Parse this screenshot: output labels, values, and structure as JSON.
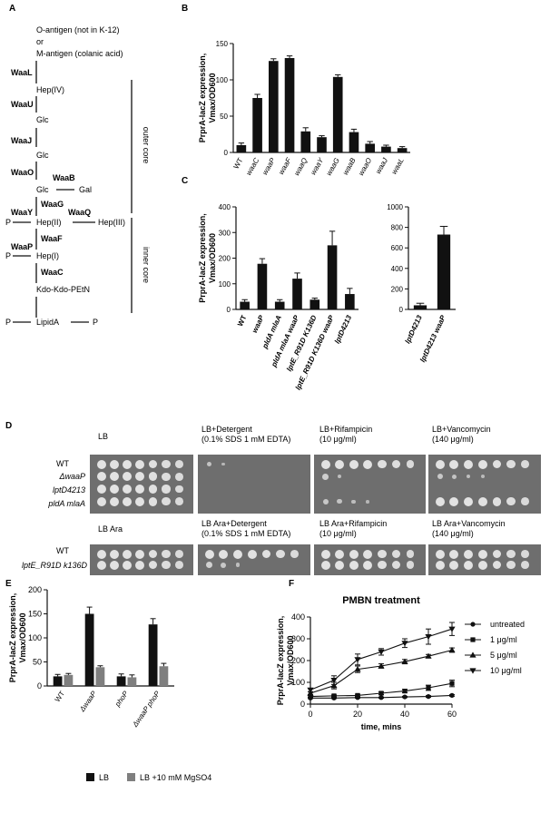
{
  "panels": {
    "A": {
      "label": "A",
      "top_lines": [
        "O-antigen (not in K-12)",
        "or",
        "M-antigen (colanic acid)"
      ],
      "nodes": {
        "hep4": "Hep(IV)",
        "glc1": "Glc",
        "glc2": "Glc",
        "glc3": "Glc",
        "gal": "Gal",
        "hep2": "Hep(II)",
        "hep3": "Hep(III)",
        "hep1": "Hep(I)",
        "kdo": "Kdo-Kdo-PEtN",
        "lipid": "LipidA",
        "p": "P"
      },
      "enzymes": {
        "waaL": "WaaL",
        "waaU": "WaaU",
        "waaJ": "WaaJ",
        "waaO": "WaaO",
        "waaB": "WaaB",
        "waaG": "WaaG",
        "waaY": "WaaY",
        "waaQ": "WaaQ",
        "waaF": "WaaF",
        "waaP": "WaaP",
        "waaC": "WaaC"
      },
      "brackets": {
        "outer": "outer core",
        "inner": "inner core"
      }
    },
    "B": {
      "label": "B"
    },
    "C": {
      "label": "C"
    },
    "D": {
      "label": "D",
      "top_conditions": [
        "LB",
        "LB+Detergent\n(0.1% SDS 1 mM EDTA)",
        "LB+Rifampicin\n(10 μg/ml)",
        "LB+Vancomycin\n(140 μg/ml)"
      ],
      "bottom_conditions": [
        "LB Ara",
        "LB Ara+Detergent\n(0.1% SDS 1 mM EDTA)",
        "LB Ara+Rifampicin\n(10 μg/ml)",
        "LB Ara+Vancomycin\n(140 μg/ml)"
      ],
      "top_strains": [
        "WT",
        "ΔwaaP",
        "lptD4213",
        "pldA mlaA"
      ],
      "bottom_strains": [
        "WT",
        "lptE_R91D k136D"
      ]
    },
    "E": {
      "label": "E"
    },
    "F": {
      "label": "F"
    }
  },
  "chart_data": [
    {
      "id": "B",
      "type": "bar",
      "ylabel": "PrprA-lacZ expression,\nVmax/OD600",
      "ylim": [
        0,
        150
      ],
      "yticks": [
        0,
        50,
        100,
        150
      ],
      "categories": [
        "WT",
        "waaC",
        "waaP",
        "waaF",
        "waaQ",
        "waaY",
        "waaG",
        "waaB",
        "waaO",
        "waaJ",
        "waaL"
      ],
      "values": [
        10,
        75,
        126,
        130,
        29,
        21,
        104,
        28,
        12,
        8,
        6
      ],
      "errors": [
        3,
        5,
        3,
        3,
        5,
        2,
        3,
        4,
        3,
        2,
        2
      ],
      "color": "#111111"
    },
    {
      "id": "C1",
      "type": "bar",
      "ylabel": "PrprA-lacZ expression,\nVmax/OD600",
      "ylim": [
        0,
        400
      ],
      "yticks": [
        0,
        100,
        200,
        300,
        400
      ],
      "categories": [
        "WT",
        "waaP",
        "pldA mlaA",
        "pldA mlaA waaP",
        "lptE_R91D K136D",
        "lptE_R91D K136D waaP",
        "lptD4213"
      ],
      "values": [
        30,
        178,
        30,
        120,
        38,
        250,
        60
      ],
      "errors": [
        8,
        20,
        8,
        22,
        6,
        55,
        22
      ],
      "color": "#111111"
    },
    {
      "id": "C2",
      "type": "bar",
      "ylim": [
        0,
        1000
      ],
      "yticks": [
        0,
        200,
        400,
        600,
        800,
        1000
      ],
      "categories": [
        "lptD4213",
        "lptD4213 waaP"
      ],
      "values": [
        40,
        730
      ],
      "errors": [
        20,
        80
      ],
      "color": "#111111"
    },
    {
      "id": "E",
      "type": "bar",
      "ylabel": "PrprA-lacZ expression,\nVmax/OD600",
      "ylim": [
        0,
        200
      ],
      "yticks": [
        0,
        50,
        100,
        150,
        200
      ],
      "categories": [
        "WT",
        "ΔwaaP",
        "phoP",
        "ΔwaaP phoP"
      ],
      "series": [
        {
          "name": "LB",
          "values": [
            20,
            150,
            20,
            128
          ],
          "errors": [
            4,
            14,
            5,
            12
          ],
          "color": "#111111"
        },
        {
          "name": "LB +10 mM MgSO4",
          "values": [
            23,
            39,
            18,
            41
          ],
          "errors": [
            3,
            3,
            5,
            6
          ],
          "color": "#7f7f7f"
        }
      ],
      "legend": "bottom"
    },
    {
      "id": "F",
      "type": "line",
      "title": "PMBN treatment",
      "xlabel": "time, mins",
      "ylabel": "PrprA-lacZ expression,\nVmax/OD600",
      "xlim": [
        0,
        60
      ],
      "ylim": [
        0,
        400
      ],
      "xticks": [
        0,
        20,
        40,
        60
      ],
      "yticks": [
        0,
        100,
        200,
        300,
        400
      ],
      "x": [
        0,
        10,
        20,
        30,
        40,
        50,
        60
      ],
      "series": [
        {
          "name": "untreated",
          "marker": "circle",
          "values": [
            28,
            28,
            30,
            30,
            33,
            35,
            40
          ],
          "errors": [
            3,
            3,
            3,
            3,
            3,
            4,
            4
          ]
        },
        {
          "name": "1 μg/ml",
          "marker": "square",
          "values": [
            35,
            38,
            40,
            50,
            60,
            75,
            95
          ],
          "errors": [
            4,
            4,
            5,
            6,
            8,
            12,
            15
          ]
        },
        {
          "name": "5 μg/ml",
          "marker": "triangle-up",
          "values": [
            50,
            85,
            160,
            175,
            195,
            220,
            248
          ],
          "errors": [
            6,
            15,
            15,
            10,
            10,
            8,
            10
          ]
        },
        {
          "name": "10 μg/ml",
          "marker": "triangle-down",
          "values": [
            65,
            110,
            205,
            240,
            280,
            310,
            345
          ],
          "errors": [
            8,
            20,
            25,
            15,
            20,
            35,
            30
          ]
        }
      ],
      "legend": "right"
    }
  ]
}
